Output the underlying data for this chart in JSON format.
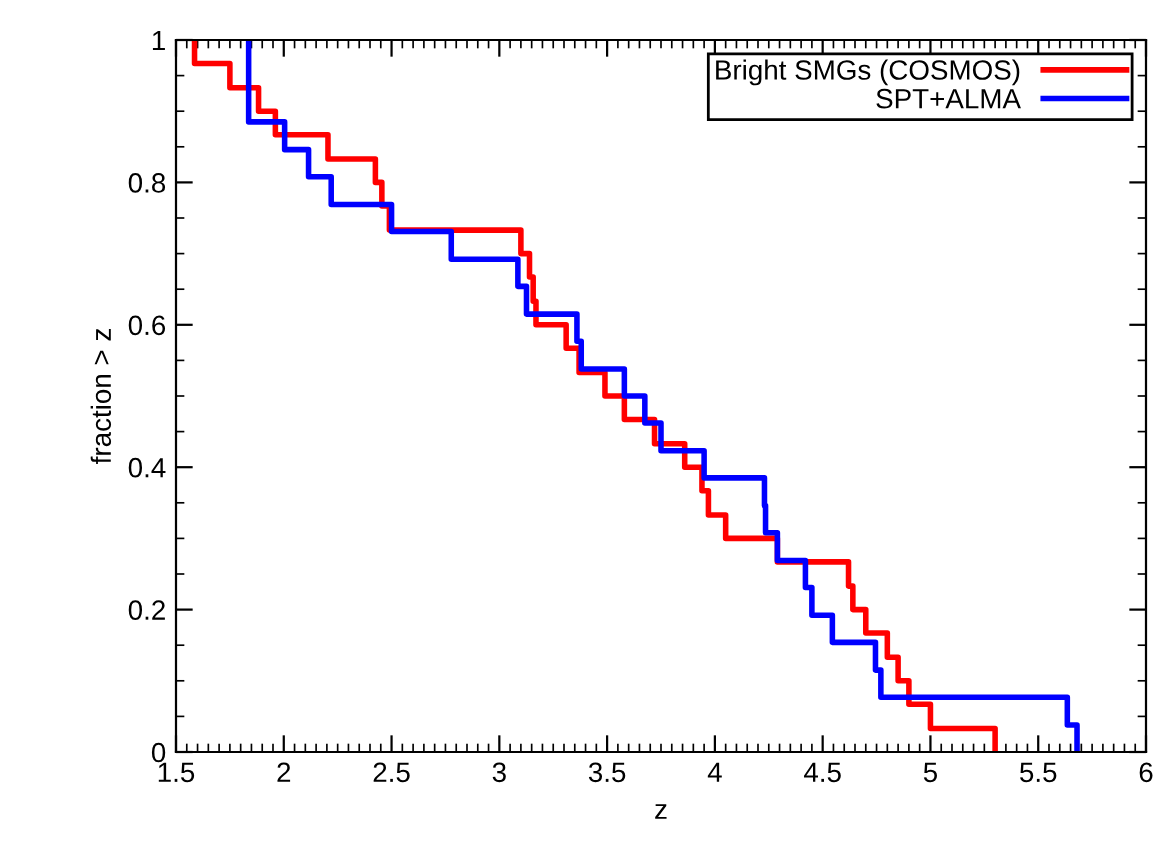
{
  "chart_data": {
    "type": "step",
    "xlabel": "z",
    "ylabel": "fraction > z",
    "xlim": [
      1.5,
      6
    ],
    "ylim": [
      0,
      1
    ],
    "xticks": [
      1.5,
      2,
      2.5,
      3,
      3.5,
      4,
      4.5,
      5,
      5.5,
      6
    ],
    "yticks": [
      0,
      0.2,
      0.4,
      0.6,
      0.8,
      1
    ],
    "legend": "top right",
    "grid": false,
    "marker": "none",
    "line_style": "solid",
    "series": [
      {
        "name": "Bright SMGs (COSMOS)",
        "color": "#ff0000",
        "x": [
          1.586,
          1.586,
          1.75,
          1.883,
          1.961,
          2.205,
          2.425,
          2.455,
          2.49,
          3.1,
          3.14,
          3.157,
          3.17,
          3.31,
          3.37,
          3.49,
          3.58,
          3.72,
          3.86,
          3.94,
          3.97,
          4.05,
          4.29,
          4.62,
          4.64,
          4.7,
          4.8,
          4.85,
          4.9,
          5.0,
          5.3
        ],
        "values": [
          1,
          0.967,
          0.933,
          0.9,
          0.867,
          0.833,
          0.8,
          0.767,
          0.733,
          0.7,
          0.667,
          0.633,
          0.6,
          0.567,
          0.533,
          0.5,
          0.467,
          0.433,
          0.4,
          0.367,
          0.333,
          0.3,
          0.267,
          0.233,
          0.2,
          0.167,
          0.133,
          0.1,
          0.067,
          0.033,
          0
        ]
      },
      {
        "name": "SPT+ALMA",
        "color": "#0000ff",
        "x": [
          1.837,
          1.837,
          2.004,
          2.115,
          2.22,
          2.5,
          2.777,
          3.086,
          3.126,
          3.36,
          3.38,
          3.58,
          3.675,
          3.75,
          3.95,
          4.23,
          4.235,
          4.29,
          4.42,
          4.45,
          4.545,
          4.745,
          4.77,
          5.635,
          5.68
        ],
        "values": [
          1,
          0.885,
          0.846,
          0.808,
          0.769,
          0.731,
          0.692,
          0.654,
          0.615,
          0.577,
          0.538,
          0.5,
          0.462,
          0.423,
          0.385,
          0.346,
          0.308,
          0.269,
          0.231,
          0.192,
          0.154,
          0.115,
          0.077,
          0.038,
          0
        ]
      }
    ]
  }
}
